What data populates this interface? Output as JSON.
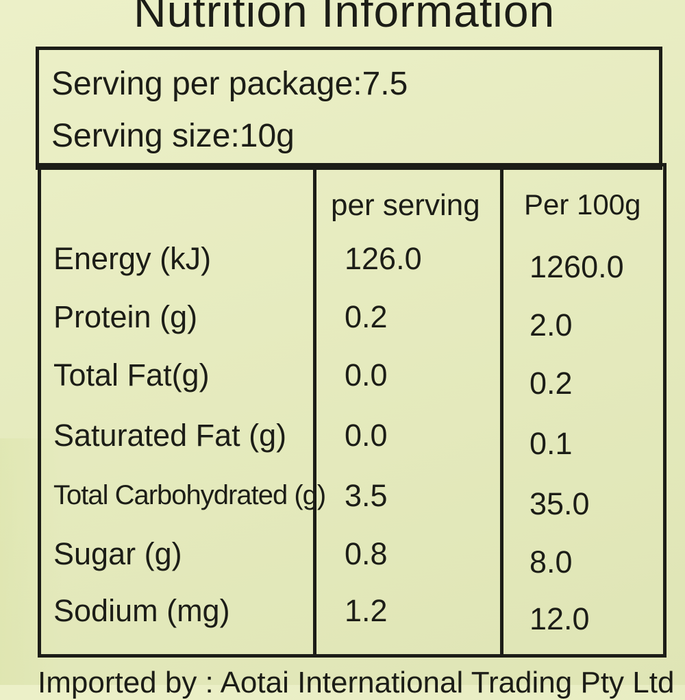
{
  "title": "Nutrition Information",
  "serving": {
    "per_package": "Serving per package:7.5",
    "size": "Serving size:10g"
  },
  "table": {
    "headers": [
      "per serving",
      "Per 100g"
    ],
    "rows": [
      {
        "name": "Energy (kJ)",
        "per_serving": "126.0",
        "per_100g": "1260.0"
      },
      {
        "name": "Protein (g)",
        "per_serving": "0.2",
        "per_100g": "2.0"
      },
      {
        "name": "Total Fat(g)",
        "per_serving": "0.0",
        "per_100g": "0.2"
      },
      {
        "name": "Saturated Fat (g)",
        "per_serving": "0.0",
        "per_100g": "0.1"
      },
      {
        "name": "Total Carbohydrated (g)",
        "per_serving": "3.5",
        "per_100g": "35.0"
      },
      {
        "name": "Sugar (g)",
        "per_serving": "0.8",
        "per_100g": "8.0"
      },
      {
        "name": "Sodium (mg)",
        "per_serving": "1.2",
        "per_100g": "12.0"
      }
    ]
  },
  "footer": "Imported by : Aotai International Trading Pty Ltd"
}
